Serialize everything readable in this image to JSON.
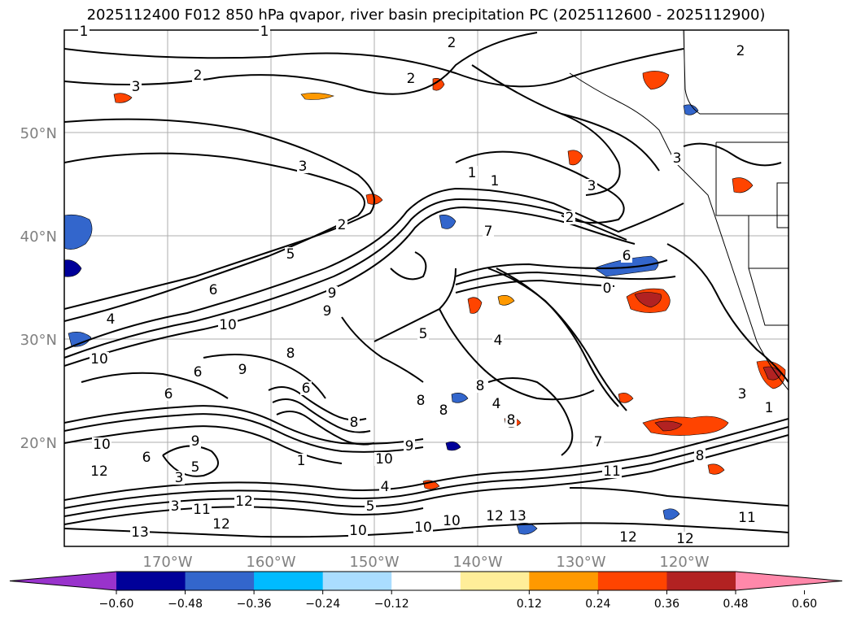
{
  "title": "2025112400 F012 850 hPa qvapor, river basin precipitation PC (2025112600 - 2025112900)",
  "lat_labels": [
    "50°N",
    "40°N",
    "30°N",
    "20°N"
  ],
  "lon_labels": [
    "170°W",
    "160°W",
    "150°W",
    "140°W",
    "130°W",
    "120°W"
  ],
  "colorbar": {
    "tick_labels": [
      "−0.60",
      "−0.48",
      "−0.36",
      "−0.24",
      "−0.12",
      "0.12",
      "0.24",
      "0.36",
      "0.48",
      "0.60"
    ],
    "colors": [
      "#9933cc",
      "#000099",
      "#3366cc",
      "#00bbff",
      "#aaddff",
      "#ffffff",
      "#ffee99",
      "#ff9900",
      "#ff4400",
      "#b22222",
      "#ff88aa"
    ]
  },
  "contour_labels": [
    "1",
    "1",
    "2",
    "2",
    "2",
    "3",
    "2",
    "3",
    "1",
    "1",
    "3",
    "2",
    "2",
    "7",
    "3",
    "5",
    "6",
    "0",
    "6",
    "4",
    "9",
    "9",
    "10",
    "4",
    "10",
    "8",
    "8",
    "9",
    "6",
    "6",
    "5",
    "4",
    "8",
    "8",
    "8",
    "6",
    "3",
    "1",
    "11",
    "12",
    "10",
    "9",
    "12",
    "10",
    "11",
    "12",
    "13",
    "12",
    "13",
    "12",
    "10",
    "11",
    "12",
    "10",
    "8",
    "7",
    "1",
    "3",
    "5",
    "5",
    "4",
    "3",
    "6",
    "10",
    "9",
    "8"
  ]
}
